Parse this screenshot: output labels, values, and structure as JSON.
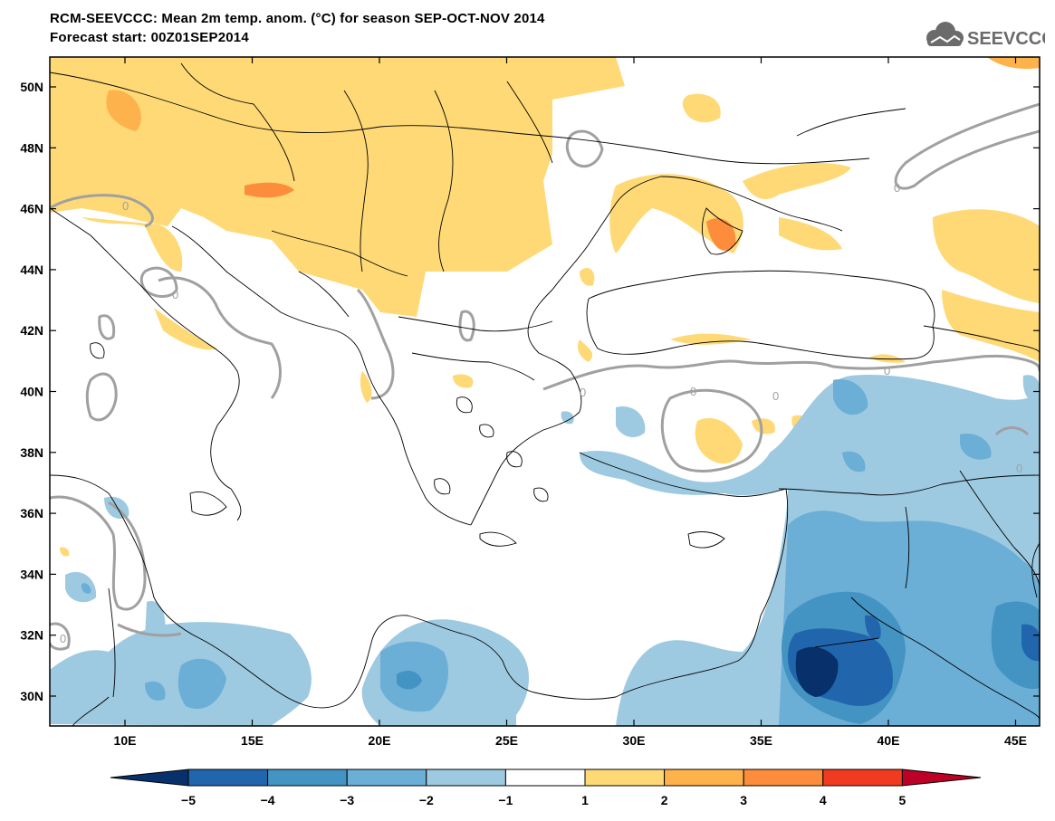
{
  "title": {
    "line1": "RCM-SEEVCCC: Mean 2m temp. anom. (°C) for season SEP-OCT-NOV 2014",
    "line2": "Forecast start: 00Z01SEP2014"
  },
  "logo": {
    "text": "SEEVCCC",
    "icon": "cloud-icon"
  },
  "map": {
    "lat_labels": [
      "50N",
      "48N",
      "46N",
      "44N",
      "42N",
      "40N",
      "38N",
      "36N",
      "34N",
      "32N",
      "30N"
    ],
    "lon_labels": [
      "10E",
      "15E",
      "20E",
      "25E",
      "30E",
      "35E",
      "40E",
      "45E"
    ],
    "contour_label": "0"
  },
  "colorbar": {
    "ticks": [
      "−5",
      "−4",
      "−3",
      "−2",
      "−1",
      "1",
      "2",
      "3",
      "4",
      "5"
    ],
    "colors": [
      "#08306b",
      "#2166ac",
      "#4393c3",
      "#6baed6",
      "#9ecae1",
      "#ffffff",
      "#fed976",
      "#feb24c",
      "#fd8d3c",
      "#f03b20",
      "#bd0026"
    ]
  },
  "colors": {
    "sea": "#ffffff",
    "border": "#000000",
    "zero_contour": "#a0a0a0"
  }
}
